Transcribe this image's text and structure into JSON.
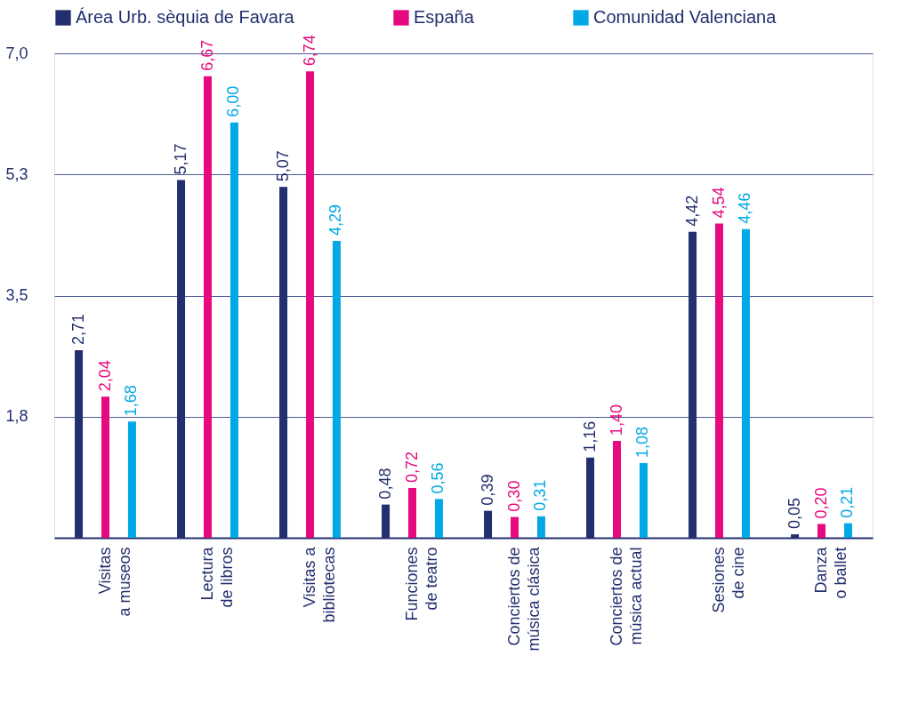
{
  "chart_data": {
    "type": "bar",
    "categories": [
      "Visitas\na museos",
      "Lectura\nde libros",
      "Visitas a\nbibliotecas",
      "Funciones\nde teatro",
      "Conciertos de\nmúsica clásica",
      "Conciertos de\nmúsica actual",
      "Sesiones\nde cine",
      "Danza\no ballet"
    ],
    "series": [
      {
        "name": "Área Urb. sèquia de Favara",
        "color": "#232f6e",
        "values": [
          2.71,
          5.17,
          5.07,
          0.48,
          0.39,
          1.16,
          4.42,
          0.05
        ],
        "value_labels": [
          "2,71",
          "5,17",
          "5,07",
          "0,48",
          "0,39",
          "1,16",
          "4,42",
          "0,05"
        ]
      },
      {
        "name": "España",
        "color": "#e6097f",
        "values": [
          2.04,
          6.67,
          6.74,
          0.72,
          0.3,
          1.4,
          4.54,
          0.2
        ],
        "value_labels": [
          "2,04",
          "6,67",
          "6,74",
          "0,72",
          "0,30",
          "1,40",
          "4,54",
          "0,20"
        ]
      },
      {
        "name": "Comunidad Valenciana",
        "color": "#00a9e6",
        "values": [
          1.68,
          6.0,
          4.29,
          0.56,
          0.31,
          1.08,
          4.46,
          0.21
        ],
        "value_labels": [
          "1,68",
          "6,00",
          "4,29",
          "0,56",
          "0,31",
          "1,08",
          "4,46",
          "0,21"
        ]
      }
    ],
    "ylim": [
      0,
      7.0
    ],
    "yticks": [
      {
        "value": 1.75,
        "label": "1,8"
      },
      {
        "value": 3.5,
        "label": "3,5"
      },
      {
        "value": 5.25,
        "label": "5,3"
      },
      {
        "value": 7.0,
        "label": "7,0"
      }
    ],
    "grid": "y",
    "legend": "top"
  }
}
